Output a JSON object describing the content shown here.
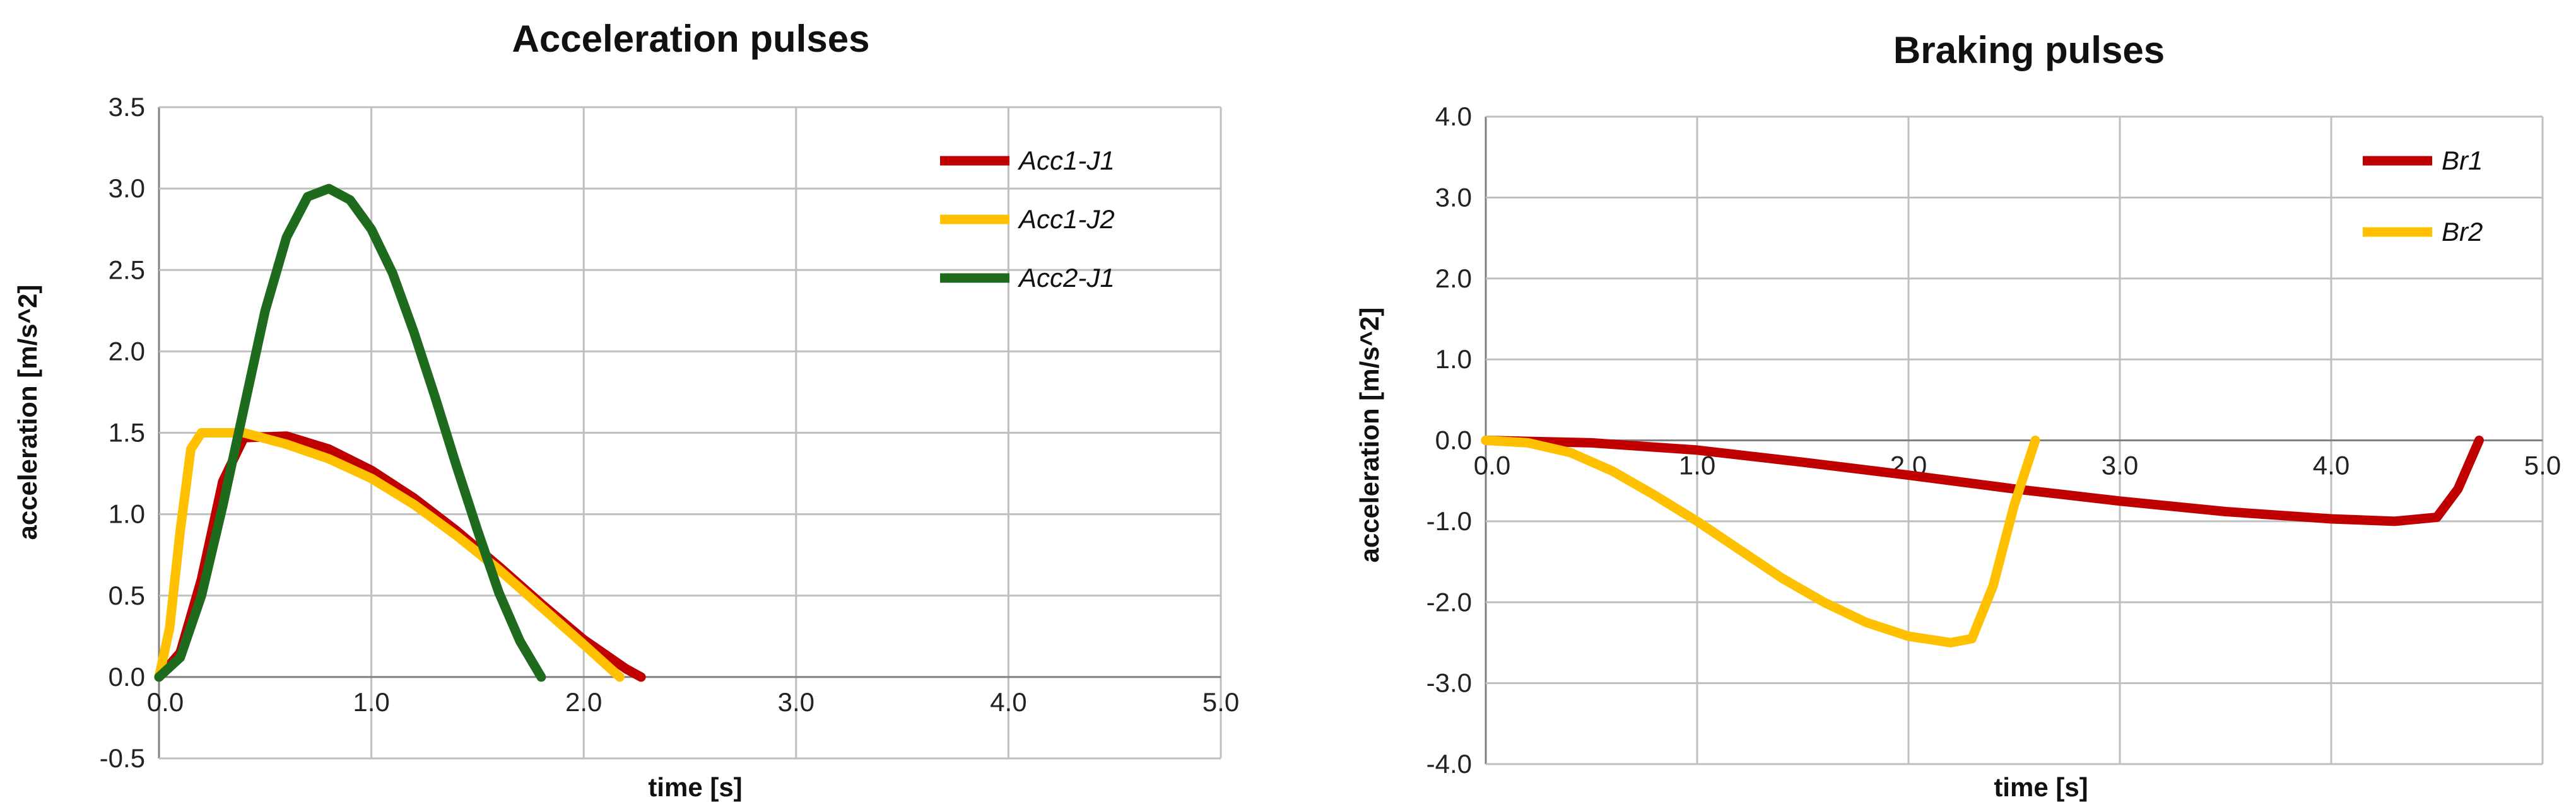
{
  "chart_data": [
    {
      "type": "line",
      "title": "Acceleration pulses",
      "xlabel": "time [s]",
      "ylabel": "acceleration [m/s^2]",
      "xlim": [
        0,
        5
      ],
      "ylim": [
        -0.5,
        3.5
      ],
      "xticks": [
        "0.0",
        "1.0",
        "2.0",
        "3.0",
        "4.0",
        "5.0"
      ],
      "yticks": [
        "-0.5",
        "0.0",
        "0.5",
        "1.0",
        "1.5",
        "2.0",
        "2.5",
        "3.0",
        "3.5"
      ],
      "grid": true,
      "legend_position": "top-right",
      "series": [
        {
          "name": "Acc1-J1",
          "color": "#c00000",
          "x": [
            0,
            0.1,
            0.2,
            0.3,
            0.4,
            0.6,
            0.8,
            1.0,
            1.2,
            1.4,
            1.6,
            1.8,
            2.0,
            2.2,
            2.27
          ],
          "y": [
            0,
            0.15,
            0.6,
            1.2,
            1.47,
            1.48,
            1.4,
            1.27,
            1.1,
            0.9,
            0.68,
            0.45,
            0.23,
            0.05,
            0
          ]
        },
        {
          "name": "Acc1-J2",
          "color": "#ffc000",
          "x": [
            0,
            0.05,
            0.1,
            0.15,
            0.2,
            0.4,
            0.6,
            0.8,
            1.0,
            1.2,
            1.4,
            1.6,
            1.8,
            2.0,
            2.17
          ],
          "y": [
            0,
            0.3,
            0.9,
            1.4,
            1.5,
            1.5,
            1.43,
            1.34,
            1.22,
            1.06,
            0.87,
            0.66,
            0.43,
            0.2,
            0
          ]
        },
        {
          "name": "Acc2-J1",
          "color": "#1e6b1e",
          "x": [
            0,
            0.1,
            0.2,
            0.3,
            0.4,
            0.5,
            0.6,
            0.7,
            0.8,
            0.9,
            1.0,
            1.1,
            1.2,
            1.3,
            1.4,
            1.5,
            1.6,
            1.7,
            1.8
          ],
          "y": [
            0,
            0.12,
            0.5,
            1.05,
            1.65,
            2.25,
            2.7,
            2.95,
            3.0,
            2.93,
            2.75,
            2.48,
            2.12,
            1.72,
            1.3,
            0.9,
            0.52,
            0.22,
            0
          ]
        }
      ]
    },
    {
      "type": "line",
      "title": "Braking pulses",
      "xlabel": "time [s]",
      "ylabel": "acceleration [m/s^2]",
      "xlim": [
        0,
        5
      ],
      "ylim": [
        -4,
        4
      ],
      "xticks": [
        "0.0",
        "1.0",
        "2.0",
        "3.0",
        "4.0",
        "5.0"
      ],
      "yticks": [
        "-4.0",
        "-3.0",
        "-2.0",
        "-1.0",
        "0.0",
        "1.0",
        "2.0",
        "3.0",
        "4.0"
      ],
      "grid": true,
      "legend_position": "top-right",
      "series": [
        {
          "name": "Br1",
          "color": "#c00000",
          "x": [
            0,
            0.5,
            1.0,
            1.5,
            2.0,
            2.5,
            3.0,
            3.5,
            4.0,
            4.3,
            4.5,
            4.6,
            4.7
          ],
          "y": [
            0,
            -0.03,
            -0.12,
            -0.27,
            -0.43,
            -0.6,
            -0.75,
            -0.88,
            -0.97,
            -1.0,
            -0.95,
            -0.6,
            0
          ]
        },
        {
          "name": "Br2",
          "color": "#ffc000",
          "x": [
            0,
            0.2,
            0.4,
            0.6,
            0.8,
            1.0,
            1.2,
            1.4,
            1.6,
            1.8,
            2.0,
            2.2,
            2.3,
            2.4,
            2.5,
            2.6
          ],
          "y": [
            0,
            -0.03,
            -0.15,
            -0.38,
            -0.68,
            -1.0,
            -1.35,
            -1.7,
            -2.0,
            -2.25,
            -2.42,
            -2.5,
            -2.45,
            -1.8,
            -0.8,
            0
          ]
        }
      ]
    }
  ]
}
